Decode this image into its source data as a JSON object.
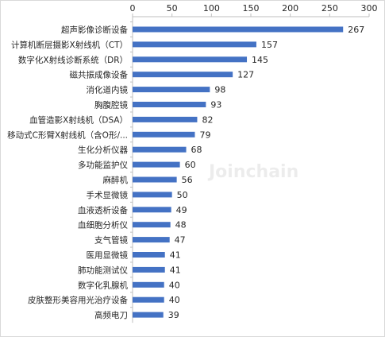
{
  "chart_data": {
    "type": "bar",
    "orientation": "horizontal",
    "categories": [
      "超声影像诊断设备",
      "计算机断层摄影X射线机（CT）",
      "数字化X射线诊断系统（DR）",
      "磁共振成像设备",
      "消化道内镜",
      "胸腹腔镜",
      "血管造影X射线机（DSA）",
      "移动式C形臂X射线机（含O形/...",
      "生化分析仪器",
      "多功能监护仪",
      "麻醉机",
      "手术显微镜",
      "血液透析设备",
      "血细胞分析仪",
      "支气管镜",
      "医用显微镜",
      "肺功能测试仪",
      "数字化乳腺机",
      "皮肤整形美容用光治疗设备",
      "高频电刀"
    ],
    "values": [
      267,
      157,
      145,
      127,
      98,
      93,
      82,
      79,
      68,
      60,
      56,
      50,
      49,
      48,
      47,
      41,
      41,
      40,
      40,
      39
    ],
    "xlim": [
      0,
      300
    ],
    "xticks": [
      0,
      50,
      100,
      150,
      200,
      250,
      300
    ],
    "x_axis_position": "top",
    "bar_color": "#4472C4",
    "grid": false,
    "data_labels": true,
    "watermark": "Joinchain"
  }
}
